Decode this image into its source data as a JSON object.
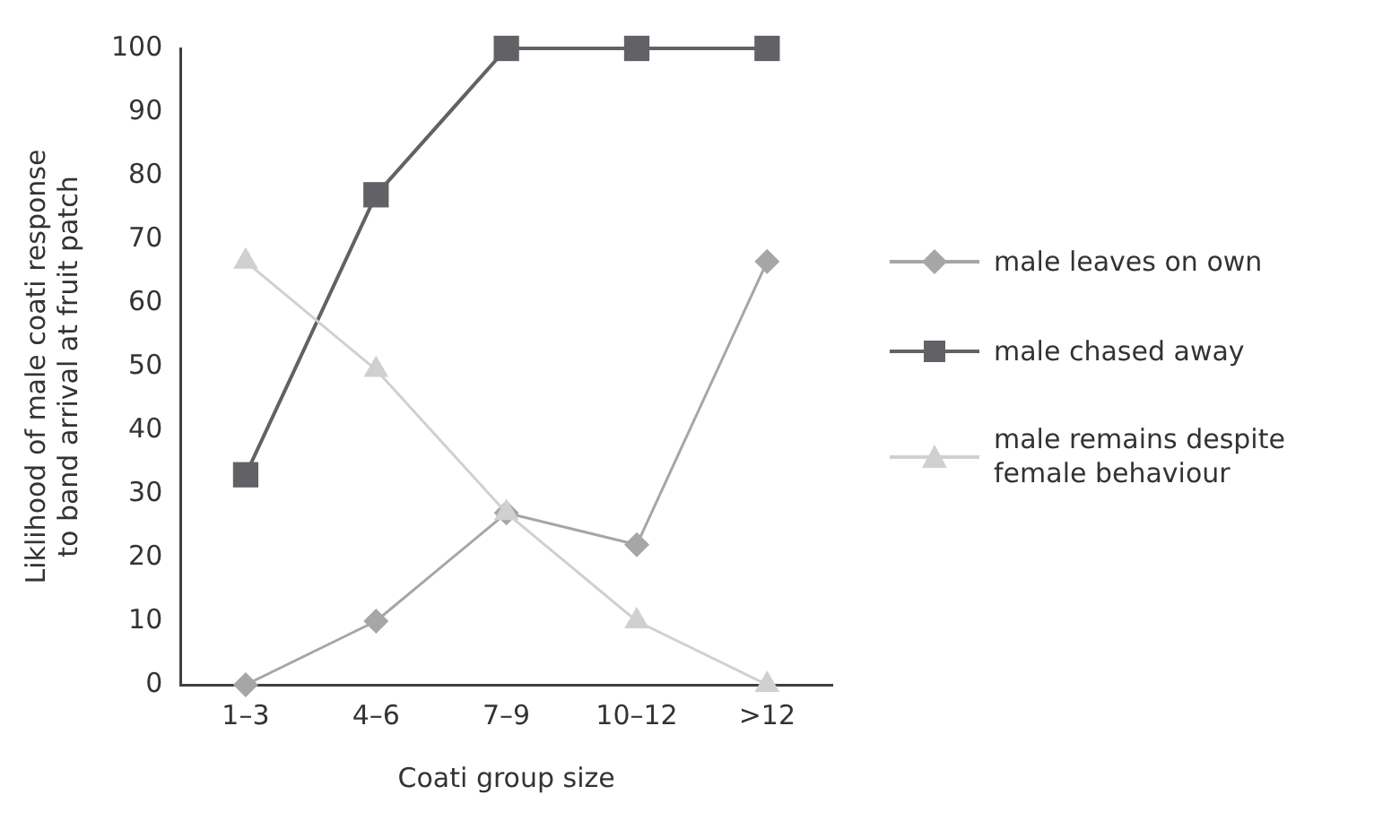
{
  "chart_data": {
    "type": "line",
    "xlabel": "Coati group size",
    "ylabel": "Liklihood of male coati response to band arrival at fruit patch",
    "categories": [
      "1–3",
      "4–6",
      "7–9",
      "10–12",
      ">12"
    ],
    "series": [
      {
        "name": "male leaves on own",
        "color": "#a6a6a6",
        "marker": "diamond",
        "values": [
          0,
          10,
          27,
          22,
          66.5
        ]
      },
      {
        "name": "male chased away",
        "color": "#626266",
        "marker": "square",
        "values": [
          33,
          77,
          100,
          100,
          100
        ]
      },
      {
        "name": "male remains despite female behaviour",
        "color": "#d0d0d0",
        "marker": "triangle",
        "values": [
          66.5,
          49.5,
          27,
          10,
          0
        ]
      }
    ],
    "ylim": [
      0,
      100
    ],
    "yticks": [
      0,
      10,
      20,
      30,
      40,
      50,
      60,
      70,
      80,
      90,
      100
    ],
    "grid": false,
    "legend": "right",
    "line_style": "solid"
  }
}
